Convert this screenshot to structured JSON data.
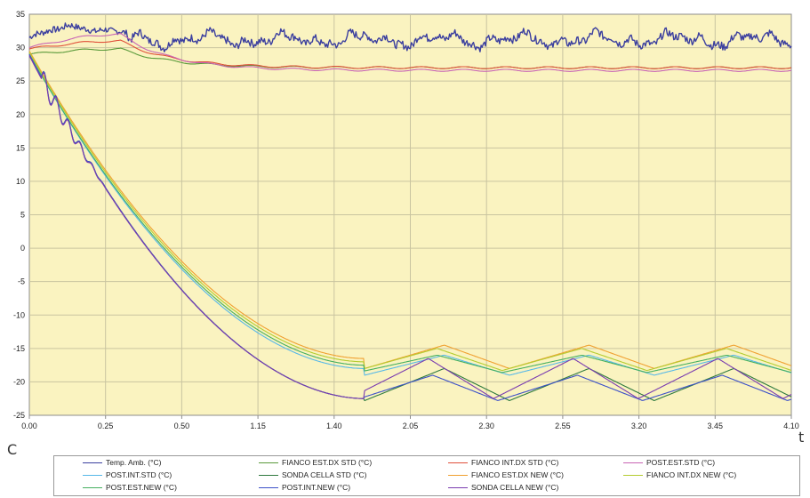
{
  "chart_data": {
    "type": "line",
    "title": "",
    "xlabel": "t",
    "ylabel": "C",
    "ylim": [
      -25,
      35
    ],
    "yticks": [
      35,
      30,
      25,
      20,
      15,
      10,
      5,
      0,
      -5,
      -10,
      -15,
      -20,
      -25
    ],
    "ytick_labels": [
      "35",
      "30",
      "25",
      "20",
      "15",
      "10",
      "5",
      "0",
      "-5",
      "-10",
      "-15",
      "-20",
      "-25"
    ],
    "xticks": [
      "0.00",
      "0.25",
      "0.50",
      "1.15",
      "1.40",
      "2.05",
      "2.30",
      "2.55",
      "3.20",
      "3.45",
      "4.10"
    ],
    "grid": true,
    "legend_position": "bottom",
    "plot_background": "#faf3c0",
    "series": [
      {
        "name": "Temp. Amb. (°C)",
        "color": "#3b3f9f",
        "kind": "ambient",
        "start": 31.5,
        "level": 31.2,
        "amp": 1.1
      },
      {
        "name": "FIANCO EST.DX STD (°C)",
        "color": "#5a9a3a",
        "kind": "side",
        "start": 29.0,
        "peak": 29.8,
        "level": 27.0
      },
      {
        "name": "FIANCO INT.DX STD (°C)",
        "color": "#e0503a",
        "kind": "side",
        "start": 29.8,
        "peak": 31.0,
        "level": 27.0
      },
      {
        "name": "POST.EST.STD (°C)",
        "color": "#c864b4",
        "kind": "side",
        "start": 30.0,
        "peak": 32.0,
        "level": 26.6
      },
      {
        "name": "POST.INT.STD (°C)",
        "color": "#56b8e8",
        "kind": "cool",
        "start": 29.0,
        "min": -18.0,
        "high": -16.0,
        "low": -19.0,
        "period": 0.19,
        "phase": 0.0
      },
      {
        "name": "SONDA CELLA STD (°C)",
        "color": "#2f7a3f",
        "kind": "probe",
        "start": 29.0,
        "min": -22.5,
        "high": -18.0,
        "low": -22.8,
        "period": 0.19,
        "phase": 0.0
      },
      {
        "name": "FIANCO EST.DX NEW (°C)",
        "color": "#f0a030",
        "kind": "cool",
        "start": 29.5,
        "min": -16.5,
        "high": -14.5,
        "low": -18.0,
        "period": 0.19,
        "phase": 0.0
      },
      {
        "name": "FIANCO INT.DX NEW (°C)",
        "color": "#b4cc30",
        "kind": "cool",
        "start": 29.3,
        "min": -17.0,
        "high": -15.0,
        "low": -18.3,
        "period": 0.19,
        "phase": 0.05
      },
      {
        "name": "POST.EST.NEW (°C)",
        "color": "#46b060",
        "kind": "cool",
        "start": 29.0,
        "min": -17.5,
        "high": -16.0,
        "low": -18.6,
        "period": 0.19,
        "phase": 0.05
      },
      {
        "name": "POST.INT.NEW (°C)",
        "color": "#3c50c8",
        "kind": "probe",
        "start": 29.0,
        "min": -22.5,
        "high": -19.0,
        "low": -22.8,
        "period": 0.19,
        "phase": 0.08
      },
      {
        "name": "SONDA CELLA NEW (°C)",
        "color": "#7a3cb0",
        "kind": "probe",
        "start": 28.8,
        "min": -22.5,
        "high": -16.5,
        "low": -22.5,
        "period": 0.19,
        "phase": 0.11
      }
    ]
  }
}
